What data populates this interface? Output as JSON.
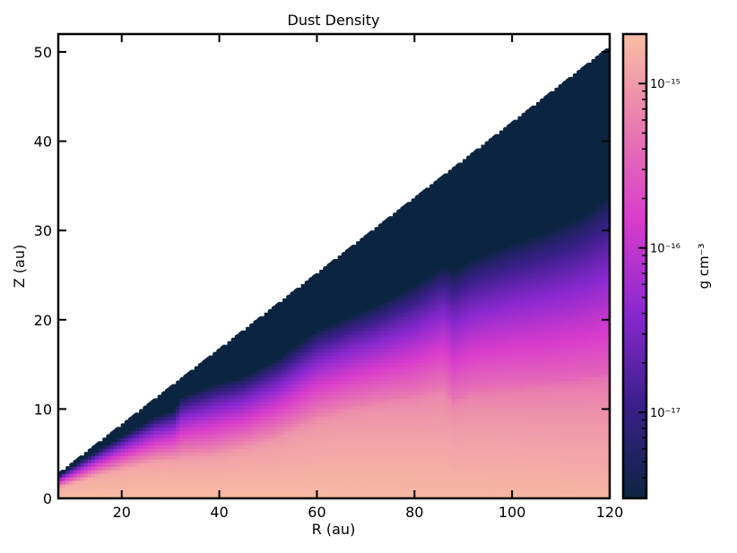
{
  "chart_data": {
    "type": "heatmap",
    "title": "Dust Density",
    "xlabel": "R (au)",
    "ylabel": "Z (au)",
    "xlim": [
      7,
      120
    ],
    "ylim": [
      0,
      52
    ],
    "x_ticks": [
      20,
      40,
      60,
      80,
      100,
      120
    ],
    "y_ticks": [
      0,
      10,
      20,
      30,
      40,
      50
    ],
    "grid": false,
    "domain_upper_edge": [
      [
        7,
        2.9
      ],
      [
        120,
        50.7
      ]
    ],
    "colorbar": {
      "label": "g cm⁻³",
      "scale": "log",
      "range": [
        3e-18,
        2e-15
      ],
      "major_ticks": [
        {
          "value": 1e-17,
          "label": "10⁻¹⁷"
        },
        {
          "value": 1e-16,
          "label": "10⁻¹⁶"
        },
        {
          "value": 1e-15,
          "label": "10⁻¹⁵"
        }
      ],
      "colors": [
        "#0b2540",
        "#3a1f8a",
        "#8a28d0",
        "#d93ccc",
        "#e87ab0",
        "#f9bfa3"
      ]
    },
    "density_front": {
      "description_units": "Z (au) where density falls to the colorbar floor, per R (au)",
      "R": [
        7,
        15,
        22,
        27,
        31,
        32,
        38,
        45,
        52,
        60,
        66,
        72,
        80,
        86,
        88,
        92,
        100,
        108,
        115,
        120
      ],
      "Z_floor": [
        2.6,
        5.4,
        7.6,
        9.2,
        9.9,
        11.3,
        12.6,
        13.6,
        15.6,
        18.8,
        20.2,
        21.5,
        23.8,
        26.0,
        25.4,
        26.8,
        28.5,
        30.0,
        31.8,
        34.0
      ],
      "Z_bright": [
        1.2,
        2.6,
        3.6,
        4.2,
        4.4,
        4.6,
        4.8,
        5.8,
        7.0,
        9.0,
        10.0,
        10.8,
        11.5,
        12.5,
        11.0,
        12.0,
        12.5,
        13.0,
        13.5,
        14.0
      ]
    }
  }
}
